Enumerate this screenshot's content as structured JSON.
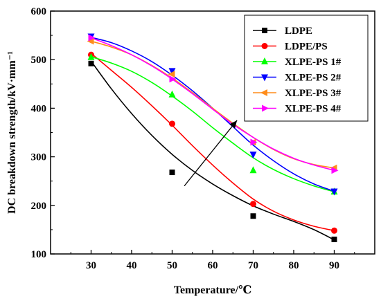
{
  "chart_data": {
    "type": "line",
    "xlabel": "Temperature/℃",
    "ylabel": "DC breakdown strength/kV·mm⁻¹",
    "xlim": [
      20,
      100
    ],
    "ylim": [
      100,
      600
    ],
    "xticks": [
      30,
      40,
      50,
      60,
      70,
      80,
      90
    ],
    "yticks": [
      100,
      200,
      300,
      400,
      500,
      600
    ],
    "legend_position": "top-right",
    "x": [
      30,
      50,
      70,
      90
    ],
    "series": [
      {
        "name": "LDPE",
        "color": "#000000",
        "marker": "square",
        "values": [
          492,
          268,
          178,
          130
        ],
        "fit": [
          [
            30,
            497
          ],
          [
            35,
            440
          ],
          [
            40,
            389
          ],
          [
            45,
            344
          ],
          [
            50,
            305
          ],
          [
            55,
            272
          ],
          [
            60,
            244
          ],
          [
            65,
            220
          ],
          [
            70,
            199
          ],
          [
            75,
            182
          ],
          [
            80,
            167
          ],
          [
            85,
            150
          ],
          [
            90,
            129
          ]
        ]
      },
      {
        "name": "LDPE/PS",
        "color": "#ff0000",
        "marker": "circle",
        "values": [
          510,
          368,
          203,
          148
        ],
        "fit": [
          [
            30,
            513
          ],
          [
            35,
            478
          ],
          [
            40,
            443
          ],
          [
            45,
            405
          ],
          [
            50,
            365
          ],
          [
            55,
            323
          ],
          [
            60,
            283
          ],
          [
            65,
            246
          ],
          [
            70,
            213
          ],
          [
            75,
            188
          ],
          [
            80,
            170
          ],
          [
            85,
            157
          ],
          [
            90,
            148
          ]
        ]
      },
      {
        "name": "XLPE-PS 1#",
        "color": "#00ff00",
        "marker": "triangle-up",
        "values": [
          505,
          428,
          272,
          228
        ],
        "fit": [
          [
            30,
            506
          ],
          [
            35,
            493
          ],
          [
            40,
            476
          ],
          [
            45,
            453
          ],
          [
            50,
            425
          ],
          [
            55,
            394
          ],
          [
            60,
            360
          ],
          [
            65,
            328
          ],
          [
            70,
            298
          ],
          [
            75,
            274
          ],
          [
            80,
            255
          ],
          [
            85,
            240
          ],
          [
            90,
            228
          ]
        ]
      },
      {
        "name": "XLPE-PS 2#",
        "color": "#0000ff",
        "marker": "triangle-down",
        "values": [
          548,
          477,
          305,
          229
        ],
        "fit": [
          [
            30,
            546
          ],
          [
            35,
            535
          ],
          [
            40,
            518
          ],
          [
            45,
            496
          ],
          [
            50,
            468
          ],
          [
            55,
            436
          ],
          [
            60,
            400
          ],
          [
            65,
            362
          ],
          [
            70,
            324
          ],
          [
            75,
            292
          ],
          [
            80,
            265
          ],
          [
            85,
            244
          ],
          [
            90,
            229
          ]
        ]
      },
      {
        "name": "XLPE-PS 3#",
        "color": "#ff8c1a",
        "marker": "triangle-left",
        "values": [
          538,
          470,
          330,
          277
        ],
        "fit": [
          [
            30,
            538
          ],
          [
            35,
            526
          ],
          [
            40,
            510
          ],
          [
            45,
            488
          ],
          [
            50,
            462
          ],
          [
            55,
            432
          ],
          [
            60,
            400
          ],
          [
            65,
            369
          ],
          [
            70,
            340
          ],
          [
            75,
            315
          ],
          [
            80,
            296
          ],
          [
            85,
            284
          ],
          [
            90,
            277
          ]
        ]
      },
      {
        "name": "XLPE-PS 4#",
        "color": "#ff00ff",
        "marker": "triangle-right",
        "values": [
          545,
          460,
          330,
          272
        ],
        "fit": [
          [
            30,
            545
          ],
          [
            35,
            529
          ],
          [
            40,
            510
          ],
          [
            45,
            487
          ],
          [
            50,
            460
          ],
          [
            55,
            430
          ],
          [
            60,
            398
          ],
          [
            65,
            367
          ],
          [
            70,
            340
          ],
          [
            75,
            316
          ],
          [
            80,
            297
          ],
          [
            85,
            283
          ],
          [
            90,
            272
          ]
        ]
      }
    ],
    "arrow": {
      "from": [
        53,
        240
      ],
      "to": [
        66,
        375
      ]
    }
  }
}
